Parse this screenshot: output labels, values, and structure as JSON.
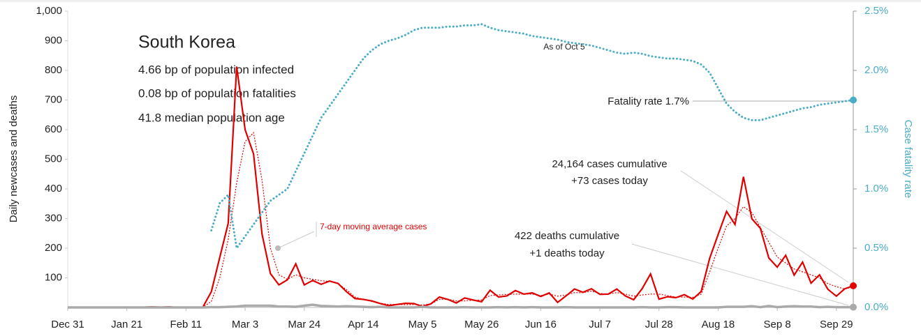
{
  "chart_data": {
    "type": "line",
    "title": "South Korea",
    "subtitle_lines": [
      "4.66 bp of population infected",
      "0.08 bp of population fatalities",
      "41.8 median population age"
    ],
    "ylabel": "Daily newcases and deaths",
    "y2label": "Case fatality rate",
    "annotations": [
      "As of Oct 5",
      "Fatality rate 1.7%",
      "24,164 cases cumulative",
      "+73 cases today",
      "422 deaths cumulative",
      "+1 deaths today"
    ],
    "categories": [
      "Dec 31",
      null,
      null,
      null,
      null,
      null,
      null,
      "Jan 21",
      null,
      null,
      null,
      null,
      null,
      null,
      "Feb 11",
      null,
      null,
      null,
      null,
      null,
      null,
      "Mar 3",
      null,
      null,
      null,
      null,
      null,
      null,
      "Mar 24",
      null,
      null,
      null,
      null,
      null,
      null,
      "Apr 14",
      null,
      null,
      null,
      null,
      null,
      null,
      "May 5",
      null,
      null,
      null,
      null,
      null,
      null,
      "May 26",
      null,
      null,
      null,
      null,
      null,
      null,
      "Jun 16",
      null,
      null,
      null,
      null,
      null,
      null,
      "Jul 7",
      null,
      null,
      null,
      null,
      null,
      null,
      "Jul 28",
      null,
      null,
      null,
      null,
      null,
      null,
      "Aug 18",
      null,
      null,
      null,
      null,
      null,
      null,
      "Sep 8",
      null,
      null,
      null,
      null,
      null,
      null,
      "Sep 29",
      null,
      null
    ],
    "ylim": [
      0,
      1000
    ],
    "yticks": [
      100,
      200,
      300,
      400,
      500,
      600,
      700,
      800,
      900,
      {
        "value": 1000,
        "label": "1,000"
      }
    ],
    "y2lim": [
      0,
      2.5
    ],
    "y2ticks": [
      {
        "value": 0,
        "label": "0.0%"
      },
      {
        "value": 0.5,
        "label": "0.5%"
      },
      {
        "value": 1,
        "label": "1.0%"
      },
      {
        "value": 1.5,
        "label": "1.5%"
      },
      {
        "value": 2,
        "label": "2.0%"
      },
      {
        "value": 2.5,
        "label": "2.5%"
      }
    ],
    "grid": false,
    "series": [
      {
        "color": "#e00000",
        "style": "solid",
        "values": [
          0,
          0,
          0,
          0,
          0,
          0,
          0,
          1,
          0,
          1,
          2,
          1,
          2,
          0,
          0,
          0,
          1,
          53,
          169,
          284,
          813,
          600,
          518,
          248,
          114,
          76,
          93,
          147,
          76,
          91,
          78,
          89,
          81,
          53,
          30,
          27,
          22,
          13,
          6,
          10,
          14,
          13,
          3,
          12,
          35,
          27,
          15,
          32,
          25,
          19,
          58,
          35,
          39,
          57,
          45,
          49,
          37,
          49,
          17,
          39,
          62,
          51,
          63,
          44,
          45,
          62,
          39,
          26,
          63,
          113,
          28,
          36,
          33,
          43,
          28,
          54,
          166,
          246,
          324,
          280,
          441,
          299,
          267,
          167,
          136,
          176,
          109,
          153,
          82,
          110,
          61,
          38,
          63,
          73
        ]
      },
      {
        "name": "7-day moving average cases",
        "color": "#e00000",
        "style": "dotted",
        "values": [
          0,
          0,
          0,
          0,
          0,
          0,
          0,
          0,
          0,
          0,
          0,
          0,
          0,
          0,
          0,
          0,
          1,
          20,
          100,
          230,
          420,
          560,
          590,
          430,
          200,
          110,
          95,
          110,
          100,
          95,
          90,
          88,
          80,
          60,
          35,
          27,
          20,
          14,
          10,
          10,
          9,
          10,
          8,
          12,
          27,
          28,
          22,
          22,
          24,
          25,
          40,
          42,
          44,
          45,
          45,
          45,
          40,
          45,
          38,
          42,
          50,
          50,
          55,
          47,
          45,
          50,
          45,
          38,
          42,
          45,
          45,
          40,
          35,
          35,
          34,
          45,
          120,
          200,
          275,
          300,
          340,
          320,
          270,
          220,
          170,
          150,
          130,
          120,
          110,
          100,
          80,
          70,
          62,
          70
        ]
      },
      {
        "color": "#aaaaaa",
        "style": "thick",
        "values": [
          0,
          0,
          0,
          0,
          0,
          0,
          0,
          0,
          0,
          0,
          0,
          0,
          0,
          0,
          0,
          0,
          0,
          1,
          1,
          2,
          3,
          6,
          6,
          6,
          6,
          3,
          3,
          2,
          6,
          9,
          5,
          4,
          3,
          4,
          3,
          2,
          1,
          2,
          0,
          0,
          0,
          0,
          2,
          0,
          0,
          0,
          0,
          1,
          0,
          0,
          0,
          1,
          0,
          1,
          0,
          1,
          0,
          0,
          0,
          1,
          0,
          0,
          0,
          0,
          0,
          0,
          0,
          0,
          1,
          0,
          0,
          1,
          1,
          0,
          0,
          0,
          0,
          0,
          2,
          2,
          2,
          4,
          1,
          5,
          1,
          3,
          4,
          3,
          3,
          1,
          2,
          1,
          1,
          1
        ]
      },
      {
        "color": "#4bacc6",
        "style": "dots",
        "axis": "y2",
        "values": [
          null,
          null,
          null,
          null,
          null,
          null,
          null,
          null,
          null,
          null,
          null,
          null,
          null,
          null,
          null,
          null,
          null,
          0.65,
          0.88,
          0.95,
          0.5,
          0.6,
          0.7,
          0.8,
          0.9,
          0.95,
          1.0,
          1.15,
          1.3,
          1.45,
          1.6,
          1.7,
          1.8,
          1.9,
          2.0,
          2.1,
          2.17,
          2.22,
          2.25,
          2.27,
          2.3,
          2.34,
          2.36,
          2.36,
          2.36,
          2.37,
          2.37,
          2.38,
          2.38,
          2.39,
          2.36,
          2.34,
          2.33,
          2.32,
          2.31,
          2.29,
          2.28,
          2.27,
          2.26,
          2.24,
          2.23,
          2.22,
          2.21,
          2.19,
          2.17,
          2.15,
          2.14,
          2.15,
          2.14,
          2.12,
          2.11,
          2.1,
          2.1,
          2.09,
          2.08,
          2.05,
          1.98,
          1.85,
          1.72,
          1.65,
          1.6,
          1.58,
          1.58,
          1.6,
          1.62,
          1.64,
          1.66,
          1.68,
          1.69,
          1.71,
          1.72,
          1.73,
          1.74,
          1.75
        ]
      }
    ]
  }
}
